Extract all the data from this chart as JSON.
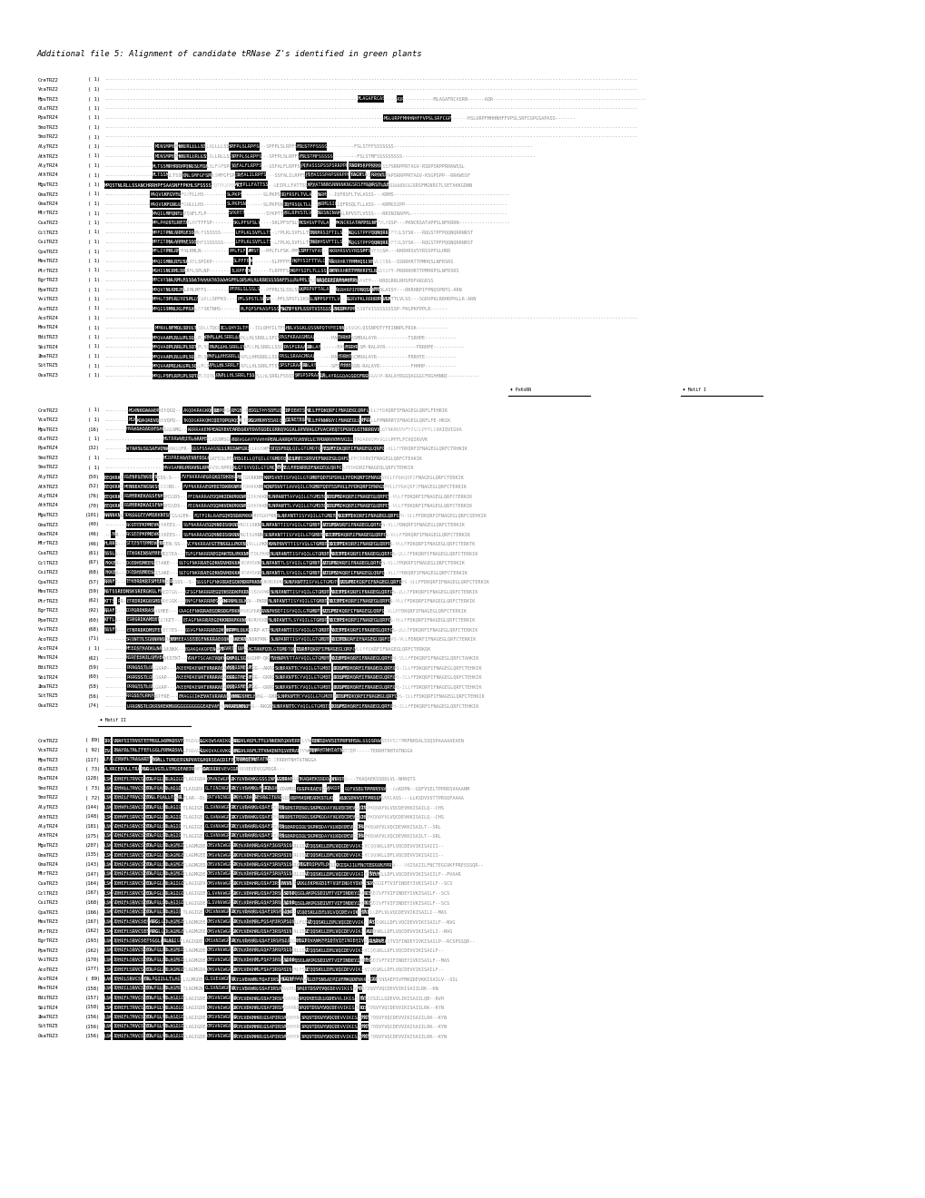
{
  "title": "Additional file 5: Alignment of candidate tRNase Z's identified in green plants",
  "background_color": "#ffffff",
  "block1_lines": [
    "CreTRZ2    ( 1) --------------------------------------------------------------------------------------------------------------------------------------------------------------------------------------------",
    "VcaTRZ2    ( 1) --------------------------------------------------------------------------------------------------------------------------------------------------------------------------------------------",
    "MpuTRZ3    ( 1) --------------------------------------------------------------------------------------------------------------------MLAGAFRCASRN------AQR------------------------------------------------------",
    "OluTRZ3    ( 1) --------------------------------------------------------------------------------------------------------------------------------------------------------------------------------------------",
    "PpaTRZ4    ( 1) --------------------------------------------------------------------------------------------------------------------------------MSLURPFMHHNHFFVPSLSRFCGPGSAPASS-------",
    "SmoTRZ3    ( 1) --------------------------------------------------------------------------------------------------------------------------------------------------------------------------------------------",
    "SmoTRZ2    ( 1) --------------------------------------------------------------------------------------------------------------------------------------------------------------------------------------------",
    "AlyTRZ3    ( 1) -----------------------MINSMPYLH--KNLRLLLLSSKS-----------SPFPLSLRPFSPRS-----------------FSLSTFFSSSSSSS-------------------------------------------------",
    "AthTRZ3    ( 1) -----------------------MINSMPYLH--KNLRLLRLLSSKS-----------SPFPLSLRPFSPRS-----------------FSLSTMFSSSSSSSSS-----------------------------------------------",
    "AlyTRZ4    ( 1) ----------------------MLTSSMPHRRVPQNLSLFGFSPLKS-----------SSFALFLRPFSLYP------------------PIFASSSPSSPSRRPPRTAGV-RSDPSRPPRRKWSSL",
    "AthTRZ4    ( 1) ----------------------MLTSSMP-------QNLSMFGFSPLKS-----------SSFALILRPFSLYP------------------PIFASSSPAPSRRPPRTAGV-RSGPSPP--RRKWSSF",
    "MguTRZ3    ( 1) MPQSTNLRLLSSANCHRRHPFSAASNFFPKHLSFSSSSFQTFLKPQFKT-----------AEIPLLFATTSSYSK------------------KPYATNNNSNNNNKNGSRSFMGNRSTLSETAKKGDNN",
    "GmaTRZ3    ( 1) ---------------------MAQVSKFGYFLLHS---------------------SLPKPSN------------------IQFRSFLTVLASSS---KRMS-----------------------------------------",
    "GmaTRZ4    ( 1) ---------------------MAQVSKFGNLLLHS---------------------SLPKPSNSN-----------------IQFRSQLTLLASS---KRMGSIPP------------------------------------",
    "MtrTRZ3    ( 1) ----------------------MAQILMFQNFLFLP---------------------SYKPTTH------------------FRLRPVSTLVSSS---RRSNINAPPL----------------------------------",
    "CsaTRZ3    ( 1) ----------------------MPLPHLSTLRFTFFSP---------------------SKLPFSFSLYSS------------------PKSHSVFTVLASSP---PKNCRSATAPPSLNFKRRN------------------",
    "CclTRZ3    ( 1) ----------------------MPFITPNLARMLFSSSSSS-------------------LFPLKLSVFLLTSTKP------------------TNRHRSIFTILSYSK---RQGSTPFPQQNQRRNRST",
    "CsiTRZ3    ( 1) ----------------------MPFITPNLARMHFSSSSSSS------------------LFPLKLSVFLLTSTKP------------------TNRHHSVFTILSYSK---RQGSTPFPQQNQRRNRST",
    "CpaTRZ3    ( 1) ----------------------MFLIYPNLRMLN-----------------------PPLFLFSK-PMSTP------------------LSMFTVFASSH---KKRHRSVSYRSSPFGLHRR",
    "MesTRZ3    ( 1) ----------------------MPQISMNLRFLSPIKP---------------------SLPFFPS-K------------------PKPYSIFTTVLCSSS--SSRRHRTTPMHQSLNFRSRS",
    "PtrTRZ3    ( 1) ----------------------MSHISNLRMLSPLNP---------------------TLRPFFS3K------------------HRPYSIFLTLLSSSSFY-PKRRRHRTTPMHRPSLNFRSRS",
    "EgrTRZ3    ( 1) ----------------------MPCVYSNLRMLFSSSATAAAATATAAAGPFLSPLKLKLRRRSSSSAFFLLPLPPLSSLSRSFIFTIFAAVEP---RRQGRRLRHSPDFARGRSS",
    "PpeTRZ3    ( 1) ----------------------MPQVTNLRMLMFFS---------------------PFPRLSLSSLSFKP------------------LKPRPVFTALASSY---RKRHRPIFPNQSPNTG-ARN",
    "VviTRZ3    ( 1) ----------------------MPHLTSFLRLYCSPLLSPFKS------------------PFLSPSTLSKSR-SP------------------LLNPPSFTTLVLSS---SGRVPKLRRHRPHLLR-ARN",
    "AcoTRZ3    ( 1) ----------------------MPQISSMNLKLFFSKTNHS---------------------PLFQFSFKASFSSSFLLS-SKTPYKPLSSVTVISSSSSSSSP-FKGPKFPPLR------",
    "AcoTRZ4    ( 1) --------------------------------------------------------------------------------------------------------------------------------------------------------------------------------------------",
    "MesTRZ4    ( 1) -----------------------MPNVLNFMQLSDLLTQCCK-----------ICLQHYILTFSLS-----------------HVLVSGKLQSSNPQTYFEINNPLFRSK-----------",
    "BdiTRZ3    ( 1) ----------------------MPQVAAPLRLLPLSQTLAP-----PAPLLHLSRRLLSFCS------------------PASFKRAASMRALAYR-----------TSRHPE-----------",
    "SbiTRZ4    ( 1) ----------------------MPQVAGPLRRLPLSQTLASA------PAPLLHLSRRLLSSCS------------------PASFGRAASM-RALAYR-----------FRRHPE-----------",
    "ZmaTRZ3    ( 1) ----------------------MPQVAAPLRLLPLSQTLAA------PAPLLHHSRRLLSSC------------------PASLSRAACMRALAYR-----------FRRHTE-----------",
    "SitTRZ5    ( 1) ----------------------MPQVAAPRLHLLPLSQTLAP------APLLHLSRRLFTSS------------------SPSFGRAASN-RALAYR-----------FHHHP-----------",
    "OsaTRZ3    ( 1) ----------------------MPQLPSFLRPLPLSQTLAAAT--------PAPLLHLSRRLFSSSSSP------------------SPSPSPRAACP-RALAYRGGQAGGGCFRGHHNNI-----------"
  ],
  "block2_lines": [
    "CreTRZ2    ( 1) -----------MGKNKGAAAEPQGQ-----------AKQDKRKGKQKQE-RQPQQ---RFGEK---EGGLTHYSSFLQVIP--ETIEHTSPA-VLLFFDKQRFIFNAGEGLQRFLFEHRIK",
    "VcaTRZ2    ( 1) -----------MGK-KQAQAEVQPQ-----------TKQDGKRKQKCQQTQPQAQQKRESS-S---AGGMRHYSSAIQVLA--EINETESPS-VLLFPNNRRYIFNAGEGLQRFLFE-HRIK",
    "MpuTRZ3    (16) ----------HARASASAEAFSAEAMG-----------KRRRAKEMPEAGYEVCARDGRVYDATGGELGRKQVGGALAYVVALCFVACAEQTSPGVILGTNRRRVVFYIGILPFFLCVAIQVIGVA",
    "OluTRZ3    ( 1) ---------------------------MSTRRWVEITLARRMSGPSS-----------ARRVGGAYYVVHHPEALAARQATCASVLLCTPDARVVMYVGILPFFLFCVQIRVVK",
    "PpaTRZ4    (32) ----------WTRASLSGSAFVQNWSQFR-----------GSSFSSAASSLLLRGSWFGRIGVRSS----------STQSFSQLQILGTGMDTQDTSPC-VLLFFDKQRFIFNAGEGLQRFCTRHKIK",
    "SmoTRZ3    ( 1) ---------------------------MCDPREASATSRFDSLPFLCD-----------AHSGELLQTQILGTGMDTQDTSRC-VLLFPCSRRVIFNAGEGLQRFCTEAKIK",
    "SmoTRZ2    ( 1) ---------------------------MAVSAMRLPRAVSLRPPQRSS-----------KLGTSYVQILGTGMCSEDT-PS-VLLFPDNRRIFNAGEQLQRFCTEHKIK",
    "AlyTRZ3    (50) EEQKRKG--RSFNESTNGTKSS-S-----------FVFNKRRAEGICKITDKRKNMPERI-TQ----------KNPSVVTISYVQILGTGMDTQDTSPSVLLFFDKQRFIFNAGEGLQRFCTERKIK",
    "AthTRZ3    (52) EEQKRKG--MENNEATNGSKSSSNS-----------FVFNKRRAEGHEITDKRKNMPERIDSO----------KQNPSVVTIAVVQILGTGMDTQDTSSPVLLFFDKQRFIFNAGEGLQRFCTERKIK",
    "AlyTRZ4    (76) EEQKRKG--RSPMEKEKASSFNHSSDS-----------FFINKRRAEGQAKIDKPKKNMPKRNTE----------TLNPANTTAYVQILGTGMDTQDTSPS-VLLFFDKQRFIFNAGEGLQRFCTERKIK",
    "AthTRZ4    (70) EEQKRKG--RSPMEKDKAISFNHSSDS-----------FEINKRRAEGQAKVDKPKKNMPKRNTE----------TLNPANTTLYVQILGTGMDTQDTSPS-VLLFFDKQRFIFNAGEGLQRFCTERKIK",
    "MguTRZ3   (101) NNNNKNN--SDKGGGFFAMEEKNTSSADEK-----------FGTFIRLRAEGQKDSDRFKKRLQLFSS-----------SLNPANTTISYVQILGTGMDTQDTSPS-VLLFFDKQRFIFNAGEGLQRFCSEHKIK",
    "GmaTRZ3    (40) ----------RKSTTPKPMEVKEES-----------SSFNKRRAEGQKNDISSKNNLRKVS-----------SLNPANTTISYVQILGTGMDTQDTSPS-VLLFDNQRFIFNAGEGLQRFCTERKIK",
    "GmaTRZ4    (46) ---FR-----RKSTTPKPMEVKEES-----------SSFNKRRAEGQKNDISSKNNLFLKVS-----------SLNPANTTISYVQILGTGMDTQDTSPS-VLLFFDKQRFIFNAGEGLQRFCTERKIK",
    "MtrTRZ3    (46) HLRRR-----STTTSTTPMEVEEN-SS-----------VCFNKRRAEGTENSGLLPKKNMLQMVT----------KVNPSVVTTISYVQLGTGMDTQDTSPS-VLLFFDKQRFIFNAGEGLQRFCTERKTK",
    "CsaTRZ3    (61) SSSLR-----ETKGKENSVFMEETEA-----------TSFGFNKRRAEGQAKTDLPKKNMLQLKVS----------SLNPANTTISYVQILGTGMDTQDTSPS-VLLFFDKQRFIFNAGEGLQRFCTERKIK",
    "CclTRZ3    (67) FKKEK-----DKEDHSMEESAKE-----------SSTGFNKRRAEGQKVDVHDKKKLQLKVS----------SLNPANTTLSYVQILGTGMDTQDTSPS-VLLFPQKRFIFNAGEGLQRFCTERKIK",
    "CsiTRZ3    (68) FKKEK-----DKEDHSMEESAKE-----------SSTGFNKRRAEGQKVDVHDKKKLQLKVS----------SLNPANTTLSYVQILGTGMDTQDTSPS-VLLFFDKQRFIFNAGEGLQRFCTERKIK",
    "CpaTRZ3    (57) RRNFT-----TFKERDKRTSMEENSSSS--S-----------SSSSFGFNKRRAEGQKNDRPKKNMLQLKVS----------SLNPANTTISYVLGTGMDTQDTSPS-VLLFFDKQRFIFNAGEGLQRFCTERKIK",
    "MesTRZ3    (59) NSTSSREDNSKSRERGKGLFMEDTGN-----------GTSGFNKRRAEGQIKSSDKPKRNMLQMRT----------SLNPANTTISYVQILGTGMDTQDTSPS-VLLFFDKQRFIFNAGEGLQRFCTERKIK",
    "PtrTRZ3    (62) KTTS--R---ETRDRDKGQSMDESGK-----------ENFGFNKRRAEGQKN--PKRNMLQLKVS----------SLNPANTTISYVQILGTGMDTQDTSPS-VLLFFDKQRFIFNAGEGLQRFCTERKIK",
    "EgrTRZ3    (92) RRAFS-----DDPGRDKRASMEE-----------GAAGEFNKRRAEGQRSDGFRKKLQLKVP----------RANPVSQTISYVQILGTGMDTQDTSPS-VLLFFDKQRFIFNAGEGLQRFCTERKIK",
    "PpeTRZ3    (60) KTTLR-----ESRGRDKAMEETKET-----------ETAGFNKRRAEGQKKNDRPKKNMLQLKVS----------SLNPANTTLSYVQILGTGMDTQDTSPS-VLLFFDKQRFIFNAGEGLQRFCTERKIK",
    "VviTRZ3    (68) SSSFR-----ETNRRDKQMSTEETES-----------GSVGFNKRRAEGQKNDRP-KTPMLQLKVS----------SLNPANTTISYVQILGTGMDTQDTSPS-VLLFFDKQRFIFNAGEGLQRFCTERKIK",
    "AcoTRZ3    (71) ----------SRSNTTLSGNNKNSKEKV--EFMEEASSSIGFNKRRAEGQKNDKFRN--LQLKTR-----------SLNPANTTISYVQILGTGMDTQDTSPS-VLLFDNQRFIFNAGEGLQRFCTERKIK",
    "AcoTRZ4    ( 1) ----------MEEISTKADKLNKNKK-----------EQAKQAKQPINCSS--KKVRTM--DSN--KGTAVFQILGTGMDTQDTSPS-VLLFPQKRFIFNAGEGLQRFCTERKQK",
    "MesTRZ4    (62) ----------NSRTESKILSMVERTKT-----------YRNFTSCAKCVQKKGHP-QKFQLSGFT-----------TVHNPVVTTAYVQILGTGMDTQDTSPS-VLLFFDKQRFIFNAGEGLQRFCTAHKIK",
    "BdiTRZ3    (59) ----------PRRGSSTLGKAP-----------AKEEMDKEVATVRARAEQKGG--AKRGSMELT-PS----------SLNPANTTCYVQILGTGMDTQDTSPS-ILLFFDKQRFIFNAGEGLQRFCTEHKIK",
    "SbiTRZ4    (60) ----------PRRGSSTLGKAP-----------AKEEMDKEVATVRARAEQKGG--GKRGTMELT-PS----------SLNPANTTCYVQILGTGMDTQDTSPS-ILLFFDKQRFIFNAGEGLQRFCTEHKIK",
    "ZmaTRZ3    (58) ----------PRRGTSTLGKAP-----------AKEEMDKEVATVRARAEQKGG--GKRGSMELT-PS----------SLNPANTTCYVQILGTGMDTQDTSPS-ILLFFDKQRFIFNAGEGLQRFCTEHKIK",
    "SitTRZ5    (56) ----------RRGSSTLRKPFRE-----------EMAGGCDKEVATVRARAEQNMG--GKRGSMELFQF----------SLNPANTTCYVQILGTGMDTQDTSPS-ILLFFDKQRFIFNAGEGLQRFCTEHKIK",
    "OsaTRZ3    (74) ----------LRRGNSTLGKRSKEKMGGGGGGGGGGGEAEVAFVNKRAEQKNG--RKGRSMELFSQS----------SLNPANTTCYVQILGTGMDTQDTSPS-ILLFFDKQRFIFNAGEGLQRFCTEHKIK"
  ],
  "block3_lines": [
    "CreTRZ2    ( 89) IRQ-VNAYSITRVSTETMSGLAOMADSVTPGDAAGL--------LGKQWSANIKGFRG-RAGVLASFLTTLVNKENTQAVERRDSNTTER-----LLKSDVVSITPRFNHSALSSQSPAAAAAEAEN",
    "VcaTRZ2    ( 92) ISQ-INAYDLTRLTTETLGGLPOMADSVLPADAGGL--------LSKQVACAVKGEPG-QAGVLASFLTTVNKENTQSVERADSNTTEP-----TERRHTNHTATNGGA",
    "MpuTRZ3   (117) LFA-LERVFLTRASARTSGGL-TOMLLTVADERGNPVATGAQRSEACDIFELTVRGEPR-TERRHTNHTATNGGA",
    "OluTRZ3    ( 73) ALXRCERVLLTRADSR-AAGGLVGTLLTMSDEAETRRGLDA----GVERRREVEVCGPDGR---",
    "PpaTRZ4   (128) LSK-IDHIFLTRVCSETA-GGLPGLLL-TLAGIGDA-----------GMVNIWGPSD-IKYLVDAHKLGSSINFIGSS-VGBRNEG---TKAQAEKSSDDLVL-NHRQTS",
    "SmoTRZ3    ( 73) LSK-VDHVLLTRVCSETA-GGLPGALL-TLAIGDV-----------GLTININGPSD-IKYLVDAMKLFGRD-IGSSVG---------GSSPRRAEVFSQ--AAKDPN--GQFVSELTPPRRSVAAANM",
    "SmoTRZ2    ( 72) LSK-IDHILFTRVCSETA-CGGLPGALLTLAR--DL-----------EATVNINGPSK-IKYLVDAMR-LFGRGITGSSVG----GSPMAQHEARKSTLKRLASS---LLKSDVVSTTPRSQFAAAA",
    "AlyTRZ3   (144) LSK-IDHVFLSRVCSETA-GGLPGLLL-TLAGIGE-----------GLSVNVWGPSD-IKYLVDAHKLGSAFIGSPS---LNSDSTPQSGLSKPKQDAYVLVQCDEVKKISAILQ--CHS",
    "AthTRZ3   (148) LSK-IDHVFLSRVCSETA-GGLPGLLL-TLAGIGE-----------GLSVNVWGPSD-IKYLVDAHKLGSAFIGSPS---LNSDSTPQSGLSKPKQDAYVLVQCDEVKKISAILQ--CHS",
    "AlyTRZ4   (181) LSK-VDHIFLSRVCSETA-GGLPGLLL-TLAGIGE-----------GLSVNVWGPSD-IKYLVDAHRLGSAFIGSPS---LNSDAPQIGLSKPKQDAYVLVQCDEVKKISAILT--SRL",
    "AthTRZ4   (175) LSK-VDHIFLSRVCSETA-GGLPGLLL-TLAGIGE-----------GLSVNVWGPSD-IKYLVDAHRLGSAFIGSPS---LNSDAPQIGLSKPKQDAYVLVQCDEVKKISAILT--SRL",
    "MguTRZ3   (207) LSK-IDHIFLSRVCSETA-GGLPGLLL-TLAGMGDE-----------GMSVNIWGPSD-IKYLVDANRLGSAFIGSPSISNIDIGI------VCQQSKLLDFLVQCDEVVIKISAIII--",
    "GmaTRZ3   (135) LSK-IDHIFLSRVCSETA-GGLPGLLL-TLAGMGEE-----------GMSVNIWGPSD-IKYLVDAHRLGSAFIRSPSISNIDIGI------VCQQSKLLDFLVQCDEVVIKISAIII--",
    "GmaTRZ4   (143) LSK-IDHIFLSRVCSETA-GGLPGLLL-TLAGMGED-----------GMSVNIWGPSD-IKYLVDANRLGSAFIRSPSISNIDIGI---PILYDIPVTLDGEV---VKISAIILFNCTEGGVKFPRESSSQR--",
    "MtrTRZ3   (147) LSK-IDHIFLSRVCSETA-GGLPGLLL-TLAGMGDE-----------GMSVNIWGPSD-IKYLVDAHRLGSAFIRSPSISNIDIGI------VCQQSKLLDFLVQCDEVVIKISAIILF--PVAAR",
    "CsaTRZ3   (164) LSK-IDHIFLSRVCSETA-GGLPGLLL-TLAGIGDV-----------GMSVNVWGPSD-IKYLVDAHRLGSAFIRSPSVS-DASDA--VKKLSKPKGDIFTVIFINDEYIVKISAILF--SCS",
    "CclTRZ3   (167) LSK-VDHIFLSRVCSETA-GGLPGLLL-TLAGIGDE-----------GLSVNVWGPSD-IKYLVDAHRLGSAFIRSPSISD-SDTPQSGLAKPGSDIVFTVIFINDEYIVKISAILF--SCS",
    "CsiTRZ3   (168) LSK-VDHIFLSRVCSETA-GGLPGLLL-TLAGIGDE-----------GLSVNVWGPSD-IKYLVDAHRLGSAFIRSPSISD-SDTPQSGLAKPGSDIVFTVIFINDEYIVKISAILF--SCS",
    "CpaTRZ3   (166) LSK-VDHIFLSRVCSETA-GGLPGLLL-TLAGIGE-----------GMIVNVWGPSD-IKYLVDAHRLGSAFIRSPSINID-CQPI--VCQQSKLLDFLVLVQCDEVVIKISAILI--MAS",
    "MesTRZ3   (167) LSK-IDHIFLSRVCSETAGG-IPGLLL-TLAGMGEE-----------GMSVNIWGPSD-IKYLVDAMRLFGSAFIRSPSISNIDIGI------VCQQSKLLDFLVQCDEVVIKISAILF--NVG",
    "PtrTRZ3   (162) LSK-IDHIFLSRVCSETAGG-TPGLLL-TLAGMGEE-----------GMSVNIWGPSD-IKYLVDAHRLGSAFIRSPSISNIDIGI------VCQQSKLLDFLVQCDEVVIKISAILI--NVG",
    "EgrTRZ3   (193) LSK-IDHIFLSRVCSETSGGLPGLLL-TLAGIGDE-----------GMSVNIWGPSD-IKYLVDAHRLGSAFIRSPSISNIDIGI---PILYDVANKFPIDTVIFINDEYIVKISAILP--RCSPSSQR--",
    "PpeTRZ3   (162) LSK-IDHIFLSRVCSETA-GGLPGLLL-TLAGMGDE-----------GMSVNVWGPSD-IKYLVDAHRLGSAFIRSPSISNIDIGI------VCQQSKLLDFLVQCDEVVIKISAILF--",
    "VviTRZ3   (170) LSK-IDHIFLSRVCSETA-GGLPGLLL-TLAGMGDE-----------GMSVNIWGPSD-IKYLVDAHMLFSAFIRSPSISD-SDTPQSGLAKPGSDIVFTVIFINDEYIVKISAILF--MAS",
    "AcoTRZ3   (177) LSK-IDHIFLSRVCSETA-GGLPGLLL-TLAGMGDA-----------GMSVNIWGPSD-IKYLVDAHMLFSAFIRSPSISNIDIGI------VCQQSKLLDFLVQCDEVVIKISAILF--",
    "AcoTRZ4    ( 89) LAK-IDHILSRVCSETA-GGLPGIILLTLAGMGDE-----------GLSVEVWGPSD-IKYLVDAHMLFQAFIRSPSALG-SGDSPAAAMS--LLDTSNSAEPIVFMKQDEVKKISAILV--SSL",
    "MesTRZ4   (158) LSK-IDHICLSRVCSETA-GGLPGLLL-TLAGMGN-----------GLSVNIWGPSD-IKYLVDAHRLGSAFIRSPQRNAS-------SPQSTDSVYVQCDEVVIKISAIILRK--KN",
    "BdiTRZ3   (157) LSK-IDHIFLTRVCSETA-GGLPGLVL-TLAGIGDE-----------GMSVNIWGPSD-IKYLVDAHRLGSAFIRSPQRNAS-------SPQSKESILLGDEVVLIKISAIILQB--RVH",
    "SbiTRZ4   (158) LSK-IDHIFLTRVCSETA-GGLPGLVL-TLAGIGDE-----------GMSVNIWGPSD-IKYLVDAHRLGSAFIRSPQRNAS-------SPQSTDSVYVQCDEVVIKISAIILRK--KYN",
    "ZmaTRZ3   (156) LSK-IDHIFLTRVCSETA-GGLPGLVL-TLAGIGDE-----------GMSVNIWGPSD-IKYLVDAMHRLGSAFIRSPQRNAS-------SPQSTDSVYVQCDEVVIKISAIILRK--KYN",
    "SitTRZ5   (156) LSK-IDHIFLTRVCSETA-GGLPGLVL-TLAGIGDE-----------GMSVNIWGPSD-IKYLVDAMHRLGSAFIRSPQRNAS-------SPQSTDSVYVQCDEVVIKISAIILRK--KYN",
    "OsaTRZ3   (156) LSK-IDHIFLTRVCSETA-GGLPGLVL-TLAGIGDE-----------GMSVNIWGPSD-IKYLVDAMHRLGSAFIRSPQRNAS-------SPQSTDSVYVQCDEVVIKISAIILRK--KYN"
  ]
}
